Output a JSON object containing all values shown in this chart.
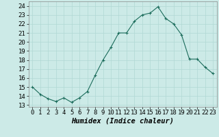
{
  "x": [
    0,
    1,
    2,
    3,
    4,
    5,
    6,
    7,
    8,
    9,
    10,
    11,
    12,
    13,
    14,
    15,
    16,
    17,
    18,
    19,
    20,
    21,
    22,
    23
  ],
  "y": [
    15.0,
    14.2,
    13.7,
    13.4,
    13.8,
    13.3,
    13.8,
    14.5,
    16.3,
    18.0,
    19.4,
    21.0,
    21.0,
    22.3,
    23.0,
    23.2,
    23.9,
    22.6,
    22.0,
    20.8,
    18.1,
    18.1,
    17.2,
    16.5
  ],
  "line_color": "#1a6b5a",
  "marker": "+",
  "marker_size": 3,
  "bg_color": "#cceae7",
  "grid_color": "#b0d8d4",
  "xlabel": "Humidex (Indice chaleur)",
  "xlim": [
    -0.5,
    23.5
  ],
  "ylim": [
    12.8,
    24.5
  ],
  "yticks": [
    13,
    14,
    15,
    16,
    17,
    18,
    19,
    20,
    21,
    22,
    23,
    24
  ],
  "xticks": [
    0,
    1,
    2,
    3,
    4,
    5,
    6,
    7,
    8,
    9,
    10,
    11,
    12,
    13,
    14,
    15,
    16,
    17,
    18,
    19,
    20,
    21,
    22,
    23
  ],
  "tick_fontsize": 6.5,
  "xlabel_fontsize": 7.5
}
